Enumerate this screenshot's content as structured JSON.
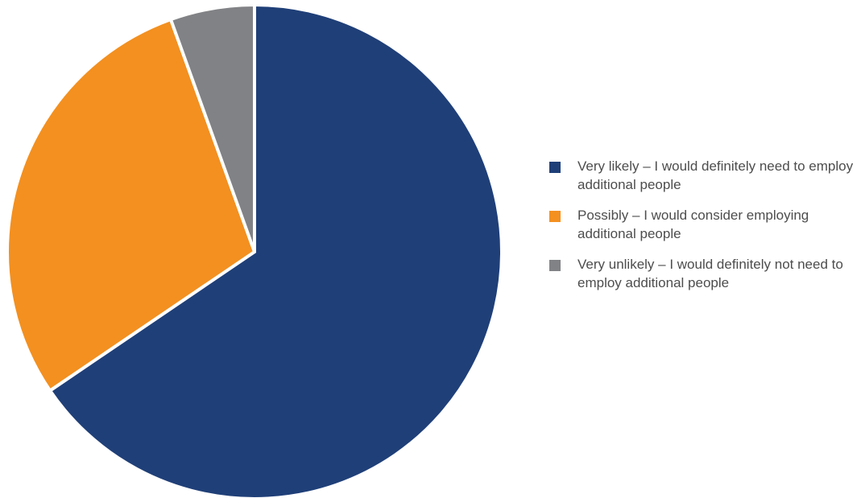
{
  "chart_data": {
    "type": "pie",
    "title": "",
    "legend_position": "right",
    "slices": [
      {
        "label": "Very likely – I would definitely need to employ additional people",
        "value": 65.5,
        "color": "#1f3f78"
      },
      {
        "label": "Possibly – I would consider employing additional people",
        "value": 29.0,
        "color": "#f39020"
      },
      {
        "label": "Very unlikely – I would definitely not need to employ additional people",
        "value": 5.5,
        "color": "#818285"
      }
    ]
  }
}
